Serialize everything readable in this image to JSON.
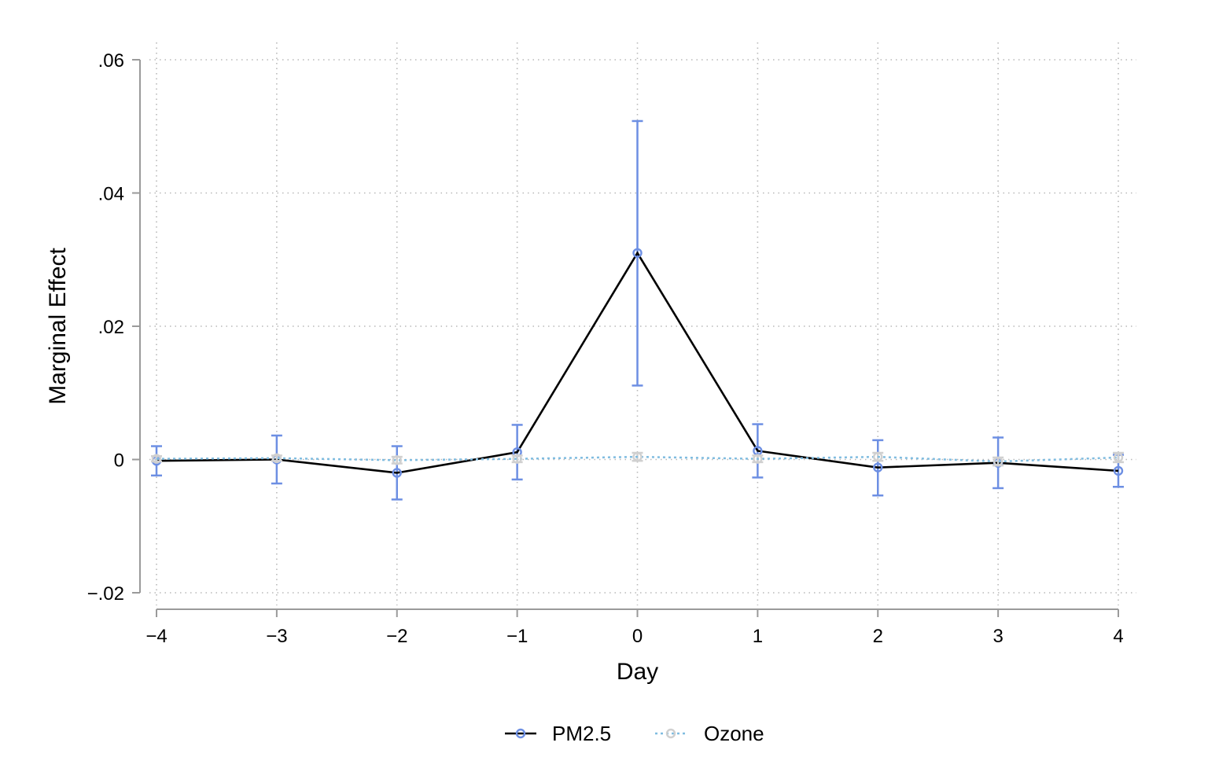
{
  "chart_data": {
    "type": "line",
    "title": "",
    "xlabel": "Day",
    "ylabel": "Marginal Effect",
    "xlim": [
      -4,
      4
    ],
    "ylim": [
      -0.02,
      0.06
    ],
    "x_ticks": [
      -4,
      -3,
      -2,
      -1,
      0,
      1,
      2,
      3,
      4
    ],
    "x_tick_labels": [
      "−4",
      "−3",
      "−2",
      "−1",
      "0",
      "1",
      "2",
      "3",
      "4"
    ],
    "y_ticks": [
      -0.02,
      0,
      0.02,
      0.04,
      0.06
    ],
    "y_tick_labels": [
      "−.02",
      "0",
      ".02",
      ".04",
      ".06"
    ],
    "grid": true,
    "legend_position": "bottom",
    "series": [
      {
        "name": "PM2.5",
        "line_color": "#000000",
        "marker_color": "#6d8fe3",
        "errorbar_color": "#6d8fe3",
        "line_style": "solid",
        "x": [
          -4,
          -3,
          -2,
          -1,
          0,
          1,
          2,
          3,
          4
        ],
        "y": [
          -0.0002,
          0.0,
          -0.002,
          0.0011,
          0.031,
          0.0013,
          -0.0012,
          -0.0005,
          -0.0017
        ],
        "lower": [
          -0.0024,
          -0.0036,
          -0.006,
          -0.003,
          0.0111,
          -0.0027,
          -0.0054,
          -0.0043,
          -0.0041
        ],
        "upper": [
          0.002,
          0.0036,
          0.002,
          0.0052,
          0.0508,
          0.0053,
          0.0029,
          0.0033,
          0.0007
        ]
      },
      {
        "name": "Ozone",
        "line_color": "#7fbce0",
        "marker_color": "#d0d0d0",
        "errorbar_color": "#d0d0d0",
        "line_style": "dotted",
        "x": [
          -4,
          -3,
          -2,
          -1,
          0,
          1,
          2,
          3,
          4
        ],
        "y": [
          0.0001,
          0.0002,
          -0.0001,
          0.0001,
          0.0004,
          0.0001,
          0.0004,
          -0.0003,
          0.0003
        ],
        "lower": [
          -0.0003,
          -0.0002,
          -0.0006,
          -0.0004,
          -0.0002,
          -0.0004,
          -0.0002,
          -0.0009,
          -0.0004
        ],
        "upper": [
          0.0005,
          0.0006,
          0.0004,
          0.0006,
          0.001,
          0.0006,
          0.001,
          0.0003,
          0.001
        ]
      }
    ]
  }
}
